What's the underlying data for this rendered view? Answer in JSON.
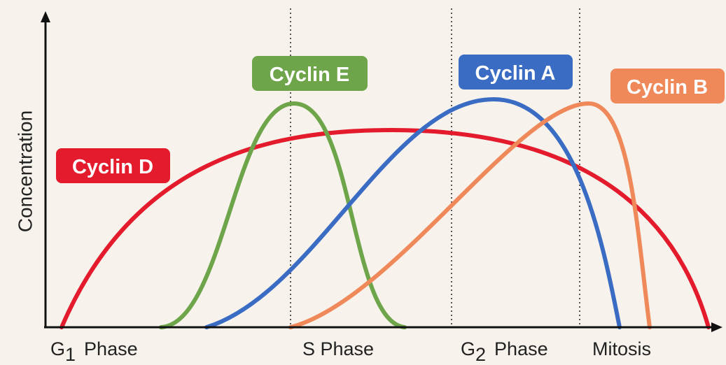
{
  "y_axis_label": "Concentration",
  "cyclins": [
    {
      "label": "Cyclin D"
    },
    {
      "label": "Cyclin E"
    },
    {
      "label": "Cyclin A"
    },
    {
      "label": "Cyclin B"
    }
  ],
  "phases": [
    {
      "name": "G",
      "subscript": "1",
      "word": "Phase"
    },
    {
      "name": "S Phase"
    },
    {
      "name": "G",
      "subscript": "2",
      "word": "Phase"
    },
    {
      "name": "Mitosis"
    }
  ]
}
